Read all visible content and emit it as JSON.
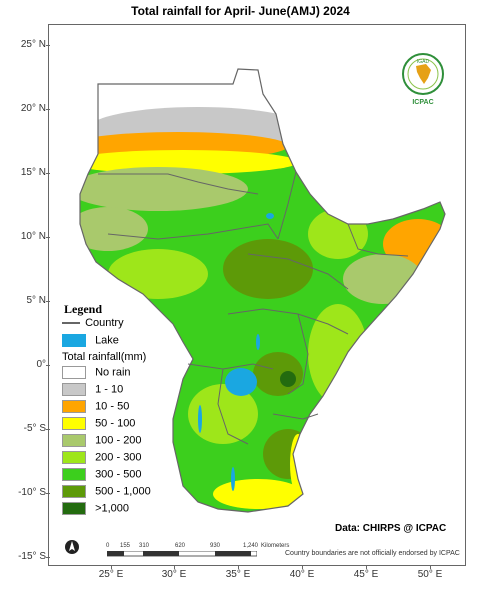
{
  "title": "Total rainfall  for April- June(AMJ)  2024",
  "axes": {
    "lat_labels": [
      "25° N",
      "20° N",
      "15° N",
      "10° N",
      "5° N",
      "0°",
      "-5° S",
      "-10° S",
      "-15° S"
    ],
    "lon_labels": [
      "25° E",
      "30° E",
      "35° E",
      "40° E",
      "45° E",
      "50° E"
    ]
  },
  "legend": {
    "title": "Legend",
    "country_label": "Country",
    "lake_label": "Lake",
    "rain_title": "Total rainfall(mm)",
    "classes": [
      {
        "label": "No rain",
        "color": "#ffffff"
      },
      {
        "label": "1 - 10",
        "color": "#c8c8c8"
      },
      {
        "label": "10 - 50",
        "color": "#ffa500"
      },
      {
        "label": "50 - 100",
        "color": "#ffff00"
      },
      {
        "label": "100 - 200",
        "color": "#a9c96c"
      },
      {
        "label": "200 - 300",
        "color": "#9ee61a"
      },
      {
        "label": "300 - 500",
        "color": "#3ccf1d"
      },
      {
        "label": "500 - 1,000",
        "color": "#5d9a08"
      },
      {
        "label": ">1,000",
        "color": "#236b0f"
      }
    ],
    "lake_color": "#1aa7e1"
  },
  "scale_bar": {
    "unit": "Kilometers",
    "ticks": [
      "0",
      "155",
      "310",
      "620",
      "930",
      "1,240"
    ]
  },
  "logo": {
    "top_text": "IGAD",
    "bottom_text": "ICPAC"
  },
  "credit": "Data: CHIRPS @ ICPAC",
  "disclaimer": "Country boundaries are not officially endorsed by ICPAC"
}
